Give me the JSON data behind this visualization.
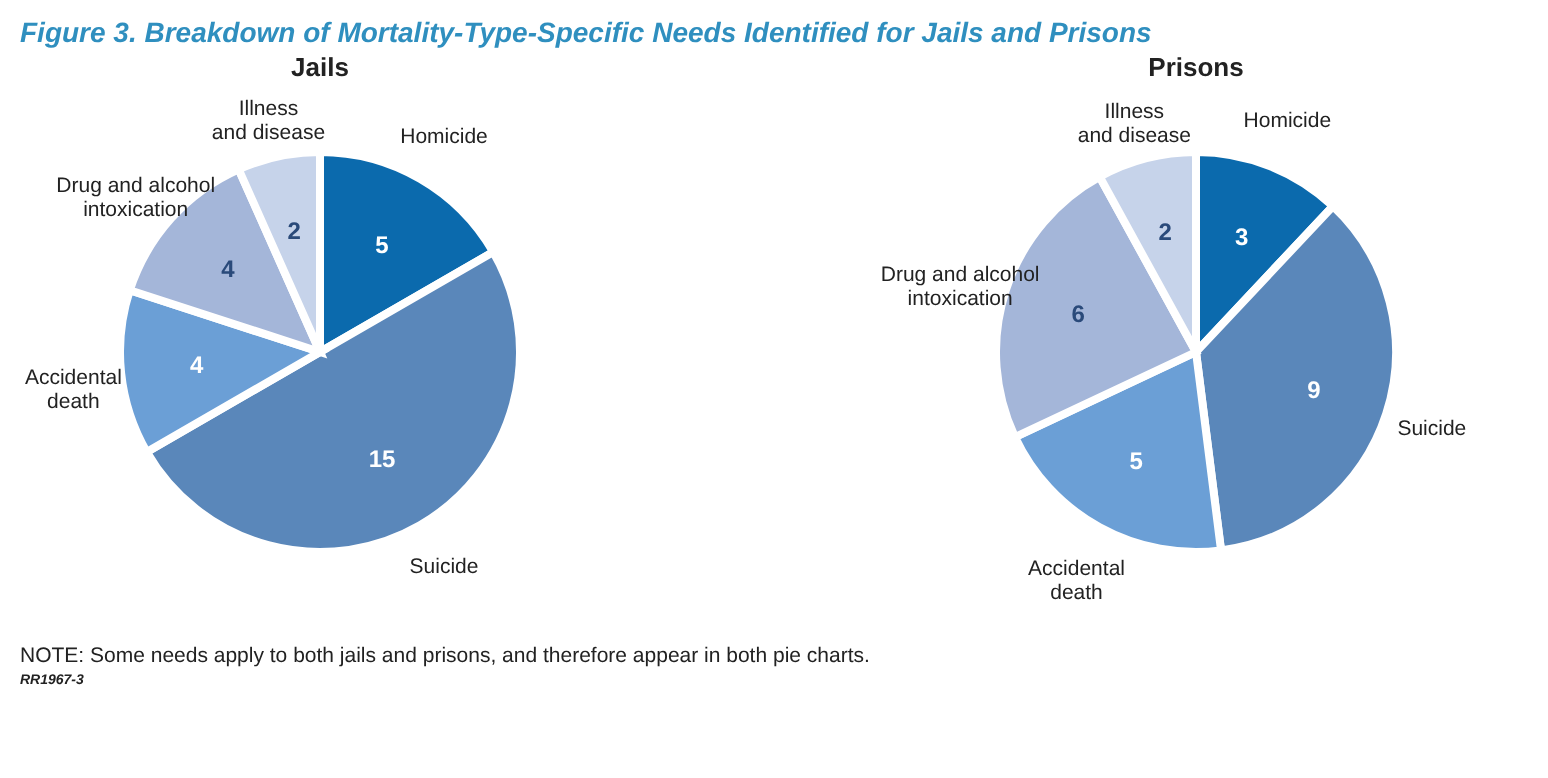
{
  "chart_data": [
    {
      "type": "pie",
      "title": "Jails",
      "categories": [
        "Homicide",
        "Suicide",
        "Accidental death",
        "Drug and alcohol intoxication",
        "Illness and disease"
      ],
      "values": [
        5,
        15,
        4,
        4,
        2
      ],
      "colors": [
        "#0b6aad",
        "#5a87ba",
        "#6b9fd6",
        "#a4b6d9",
        "#c6d3ea"
      ],
      "data_labels": true,
      "annotations": [
        "Figure 3. Breakdown of Mortality-Type-Specific Needs Identified for Jails and Prisons"
      ]
    },
    {
      "type": "pie",
      "title": "Prisons",
      "categories": [
        "Homicide",
        "Suicide",
        "Accidental death",
        "Drug and alcohol intoxication",
        "Illness and disease"
      ],
      "values": [
        3,
        9,
        5,
        6,
        2
      ],
      "colors": [
        "#0b6aad",
        "#5a87ba",
        "#6b9fd6",
        "#a4b6d9",
        "#c6d3ea"
      ],
      "data_labels": true,
      "annotations": [
        "NOTE: Some needs apply to both jails and prisons, and therefore appear in both pie charts.",
        "RR1967-3"
      ]
    }
  ]
}
